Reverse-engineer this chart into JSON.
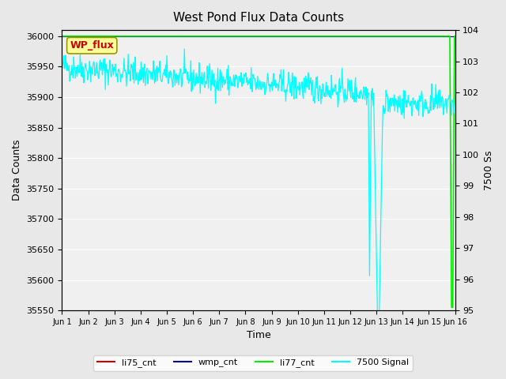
{
  "title": "West Pond Flux Data Counts",
  "xlabel": "Time",
  "ylabel_left": "Data Counts",
  "ylabel_right": "7500 Ss",
  "ylim_left": [
    35550,
    36010
  ],
  "ylim_right": [
    95.0,
    104.0
  ],
  "yticks_left": [
    35550,
    35600,
    35650,
    35700,
    35750,
    35800,
    35850,
    35900,
    35950,
    36000
  ],
  "yticks_right": [
    95.0,
    96.0,
    97.0,
    98.0,
    99.0,
    100.0,
    101.0,
    102.0,
    103.0,
    104.0
  ],
  "xtick_labels": [
    "Jun 1",
    "Jun 2",
    "Jun 3",
    "Jun 4",
    "Jun 5",
    "Jun 6",
    "Jun 7",
    "Jun 8",
    "Jun 9",
    "Jun 10",
    "Jun 11",
    "Jun 12",
    "Jun 13",
    "Jun 14",
    "Jun 15",
    "Jun 16"
  ],
  "bg_color": "#e8e8e8",
  "plot_bg_color": "#f0f0f0",
  "legend_entries": [
    "li75_cnt",
    "wmp_cnt",
    "li77_cnt",
    "7500 Signal"
  ],
  "legend_colors": [
    "#cc0000",
    "#000080",
    "#00cc00",
    "#00cccc"
  ],
  "wp_flux_label": "WP_flux",
  "wp_flux_bg": "#ffff99",
  "wp_flux_fg": "#cc0000",
  "li77_cnt_value": 36000,
  "li75_cnt_value": 36000,
  "wmp_cnt_value": 36000
}
